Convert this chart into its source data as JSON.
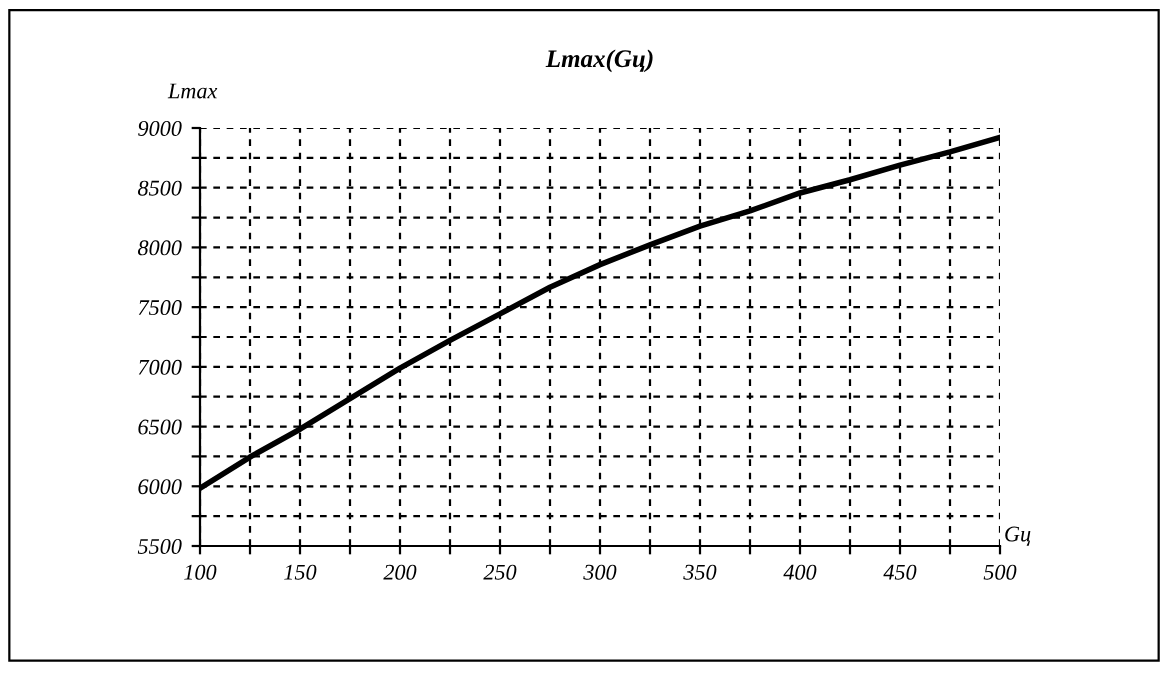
{
  "chart_data": {
    "type": "line",
    "title": "Lmax(Gц)",
    "xlabel": "Gц",
    "ylabel": "Lmax",
    "x": [
      100,
      125,
      150,
      175,
      200,
      225,
      250,
      275,
      300,
      325,
      350,
      375,
      400,
      425,
      450,
      475,
      500
    ],
    "series": [
      {
        "color": "#000000",
        "values": [
          5983,
          6245,
          6478,
          6733,
          6989,
          7222,
          7444,
          7667,
          7856,
          8022,
          8178,
          8306,
          8456,
          8567,
          8689,
          8800,
          8922
        ]
      }
    ],
    "xlim": [
      100,
      500
    ],
    "ylim": [
      5500,
      9000
    ],
    "xticks": [
      100,
      {
        "value": 125,
        "label": null
      },
      150,
      {
        "value": 175,
        "label": null
      },
      200,
      {
        "value": 225,
        "label": null
      },
      250,
      {
        "value": 275,
        "label": null
      },
      300,
      {
        "value": 325,
        "label": null
      },
      350,
      {
        "value": 375,
        "label": null
      },
      400,
      {
        "value": 425,
        "label": null
      },
      450,
      {
        "value": 475,
        "label": null
      },
      500
    ],
    "yticks": [
      5500,
      {
        "value": 5750,
        "label": null
      },
      6000,
      {
        "value": 6250,
        "label": null
      },
      6500,
      {
        "value": 6750,
        "label": null
      },
      7000,
      {
        "value": 7250,
        "label": null
      },
      7500,
      {
        "value": 7750,
        "label": null
      },
      8000,
      {
        "value": 8250,
        "label": null
      },
      8500,
      {
        "value": 8750,
        "label": null
      },
      9000
    ],
    "grid": true,
    "line_style": "solid",
    "marker": "none",
    "legend": false
  }
}
